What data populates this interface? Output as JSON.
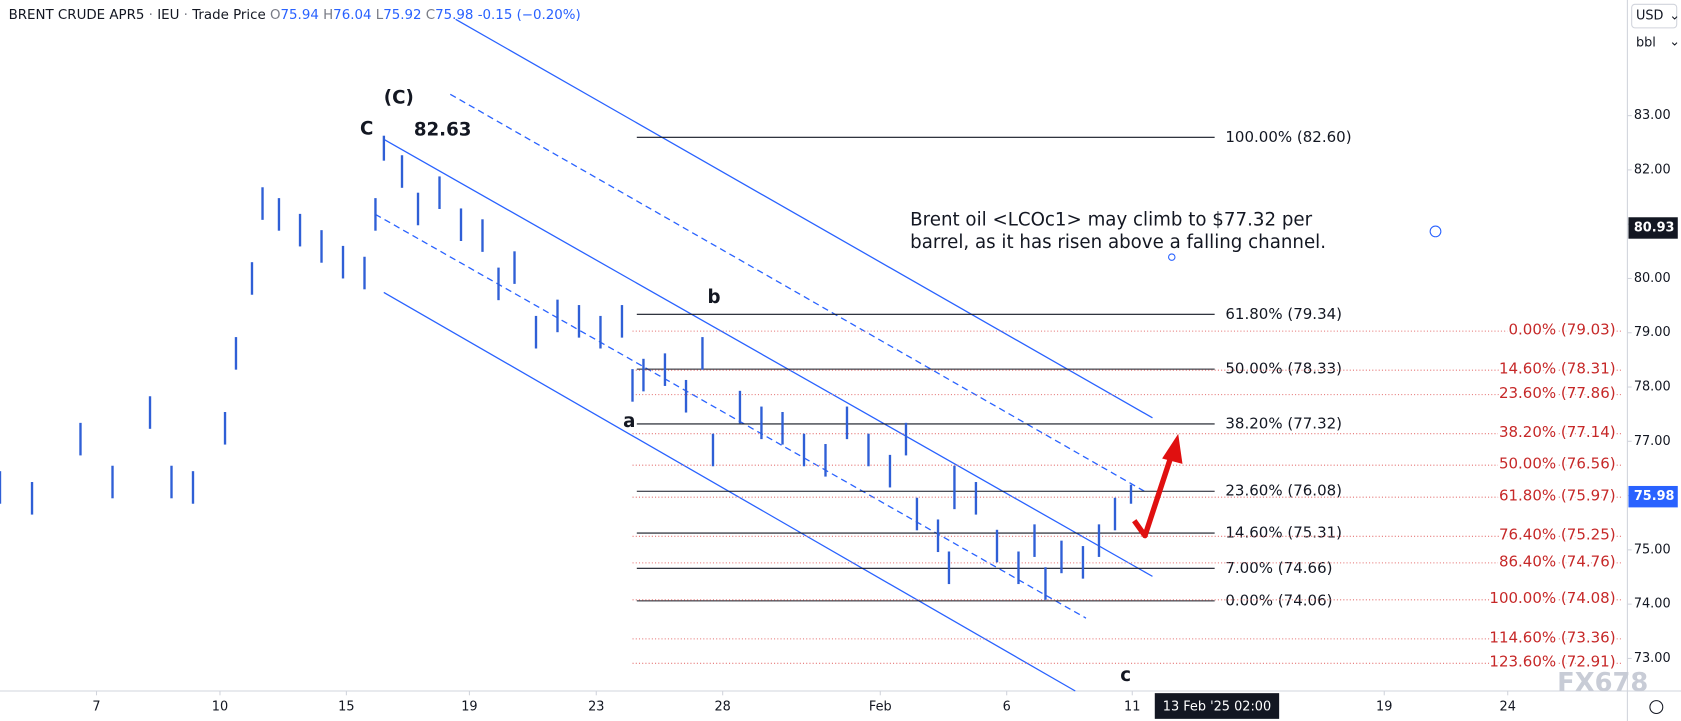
{
  "header": {
    "symbol": "BRENT CRUDE APR5",
    "exchange": "IEU",
    "price_type": "Trade Price",
    "ohlc": [
      {
        "letter": "O",
        "value": "75.94"
      },
      {
        "letter": "H",
        "value": "76.04"
      },
      {
        "letter": "L",
        "value": "75.92"
      },
      {
        "letter": "C",
        "value": "75.98"
      }
    ],
    "change": "-0.15 (−0.20%)"
  },
  "currency": "USD",
  "unit": "bbl",
  "watermark": "FX678",
  "chart_data": {
    "type": "ohlc-bars",
    "xlim": [
      -2.29,
      36.33
    ],
    "ylim": [
      72.4,
      85.13
    ],
    "xticks": [
      {
        "value": 0,
        "label": "7"
      },
      {
        "value": 2.93,
        "label": "10"
      },
      {
        "value": 5.93,
        "label": "15"
      },
      {
        "value": 8.85,
        "label": "19"
      },
      {
        "value": 11.86,
        "label": "23"
      },
      {
        "value": 14.86,
        "label": "28"
      },
      {
        "value": 18.6,
        "label": "Feb"
      },
      {
        "value": 21.6,
        "label": "6"
      },
      {
        "value": 24.58,
        "label": "11"
      },
      {
        "value": 30.56,
        "label": "19"
      },
      {
        "value": 33.49,
        "label": "24"
      }
    ],
    "yticks": [
      {
        "value": 73,
        "label": "73.00"
      },
      {
        "value": 74,
        "label": "74.00"
      },
      {
        "value": 75,
        "label": "75.00"
      },
      {
        "value": 76,
        "label": "76.00"
      },
      {
        "value": 77,
        "label": "77.00"
      },
      {
        "value": 78,
        "label": "78.00"
      },
      {
        "value": 79,
        "label": "79.00"
      },
      {
        "value": 80,
        "label": "80.00"
      },
      {
        "value": 81,
        "label": "81.00"
      },
      {
        "value": 82,
        "label": "82.00"
      },
      {
        "value": 83,
        "label": "83.00"
      }
    ],
    "cursor_time": {
      "value": 26.59,
      "label": "13 Feb '25   02:00"
    },
    "cursor_price": 80.93,
    "last_price": 75.98,
    "color": "#2f5fd6",
    "x": [
      -2.29,
      -1.53,
      -0.38,
      0.38,
      1.27,
      1.78,
      2.29,
      3.05,
      3.31,
      3.69,
      3.94,
      4.33,
      4.83,
      5.34,
      5.85,
      6.36,
      6.62,
      6.82,
      7.25,
      7.63,
      8.14,
      8.65,
      9.16,
      9.54,
      9.92,
      10.43,
      10.94,
      11.45,
      11.96,
      12.47,
      12.72,
      12.98,
      13.49,
      13.99,
      14.38,
      14.63,
      15.27,
      15.78,
      16.28,
      16.79,
      17.3,
      17.81,
      18.32,
      18.83,
      19.21,
      19.47,
      19.97,
      20.23,
      20.36,
      20.87,
      21.37,
      21.88,
      22.26,
      22.52,
      22.9,
      23.41,
      23.79,
      24.17,
      24.55
    ],
    "high": [
      76.45,
      76.25,
      77.34,
      76.55,
      77.83,
      76.55,
      76.45,
      77.54,
      78.92,
      80.3,
      81.68,
      81.48,
      81.19,
      80.89,
      80.6,
      80.4,
      81.48,
      82.63,
      82.27,
      81.58,
      81.88,
      81.29,
      81.09,
      80.2,
      80.5,
      79.31,
      79.61,
      79.51,
      79.31,
      79.51,
      78.33,
      78.52,
      78.62,
      78.13,
      78.92,
      77.14,
      77.93,
      77.64,
      77.54,
      77.14,
      76.95,
      77.64,
      77.14,
      76.75,
      77.34,
      75.96,
      75.56,
      74.97,
      76.55,
      76.25,
      75.37,
      74.97,
      75.47,
      74.68,
      75.17,
      75.07,
      75.47,
      75.96,
      76.2
    ],
    "low": [
      75.85,
      75.65,
      76.74,
      75.95,
      77.23,
      75.95,
      75.85,
      76.94,
      78.32,
      79.7,
      81.08,
      80.88,
      80.59,
      80.29,
      80.0,
      79.8,
      80.88,
      82.17,
      81.67,
      80.98,
      81.28,
      80.69,
      80.49,
      79.6,
      79.9,
      78.71,
      79.01,
      78.91,
      78.71,
      78.91,
      77.73,
      77.92,
      78.02,
      77.53,
      78.32,
      76.54,
      77.33,
      77.04,
      76.94,
      76.54,
      76.35,
      77.04,
      76.54,
      76.15,
      76.74,
      75.36,
      74.96,
      74.37,
      75.75,
      75.65,
      74.77,
      74.37,
      74.87,
      74.08,
      74.57,
      74.47,
      74.87,
      75.36,
      75.85
    ],
    "fib_retracement": [
      {
        "label": "100.00% (82.60)",
        "price": 82.6
      },
      {
        "label": "61.80% (79.34)",
        "price": 79.34
      },
      {
        "label": "50.00% (78.33)",
        "price": 78.33
      },
      {
        "label": "38.20% (77.32)",
        "price": 77.32
      },
      {
        "label": "23.60% (76.08)",
        "price": 76.08
      },
      {
        "label": "14.60% (75.31)",
        "price": 75.31
      },
      {
        "label": "7.00% (74.66)",
        "price": 74.66
      },
      {
        "label": "0.00% (74.06)",
        "price": 74.06
      }
    ],
    "fib_extension": [
      {
        "label": "0.00% (79.03)",
        "price": 79.03
      },
      {
        "label": "14.60% (78.31)",
        "price": 78.31
      },
      {
        "label": "23.60% (77.86)",
        "price": 77.86
      },
      {
        "label": "38.20% (77.14)",
        "price": 77.14
      },
      {
        "label": "50.00% (76.56)",
        "price": 76.56
      },
      {
        "label": "61.80% (75.97)",
        "price": 75.97
      },
      {
        "label": "76.40% (75.25)",
        "price": 75.25
      },
      {
        "label": "86.40% (74.76)",
        "price": 74.76
      },
      {
        "label": "100.00% (74.08)",
        "price": 74.08
      },
      {
        "label": "114.60% (73.36)",
        "price": 73.36
      },
      {
        "label": "123.60% (72.91)",
        "price": 72.91
      }
    ],
    "wave_labels": [
      "(C)",
      "C",
      "b",
      "a",
      "c"
    ],
    "peak_value": 82.63,
    "note": [
      "Brent oil <LCOc1> may climb to $77.32 per",
      "barrel, as it has risen above a falling channel."
    ]
  }
}
